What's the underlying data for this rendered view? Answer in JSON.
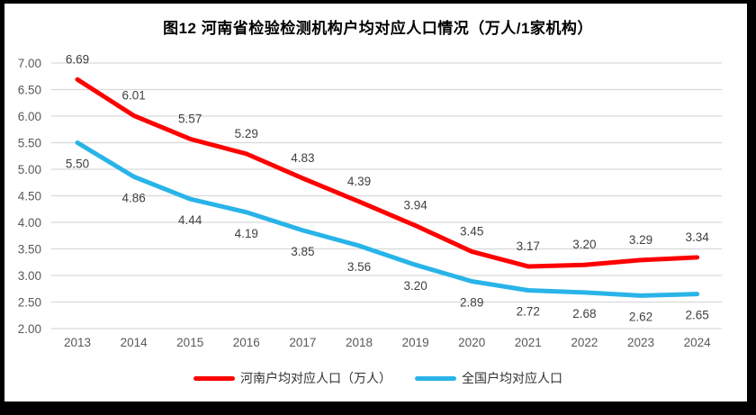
{
  "page": {
    "title": "图12  河南省检验检测机构户均对应人口情况（万人/1家机构）",
    "border_color": "#000000",
    "background_color": "#ffffff"
  },
  "chart_data": {
    "type": "line",
    "title": "图12  河南省检验检测机构户均对应人口情况（万人/1家机构）",
    "categories": [
      "2013",
      "2014",
      "2015",
      "2016",
      "2017",
      "2018",
      "2019",
      "2020",
      "2021",
      "2022",
      "2023",
      "2024"
    ],
    "series": [
      {
        "name": "河南户均对应人口（万人）",
        "color": "#ff0000",
        "values": [
          6.69,
          6.01,
          5.57,
          5.29,
          4.83,
          4.39,
          3.94,
          3.45,
          3.17,
          3.2,
          3.29,
          3.34
        ],
        "label_position": "above"
      },
      {
        "name": "全国户均对应人口",
        "color": "#29b4e8",
        "values": [
          5.5,
          4.86,
          4.44,
          4.19,
          3.85,
          3.56,
          3.2,
          2.89,
          2.72,
          2.68,
          2.62,
          2.65
        ],
        "label_position": "below"
      }
    ],
    "ylim": [
      2.0,
      7.0
    ],
    "ytick_step": 0.5,
    "ytick_labels": [
      "2.00",
      "2.50",
      "3.00",
      "3.50",
      "4.00",
      "4.50",
      "5.00",
      "5.50",
      "6.00",
      "6.50",
      "7.00"
    ],
    "value_decimals": 2,
    "grid": true,
    "gridline_color": "#d9d9d9",
    "axis_label_color": "#595959",
    "data_label_color": "#404040",
    "legend_position": "bottom",
    "xlabel": "",
    "ylabel": ""
  }
}
